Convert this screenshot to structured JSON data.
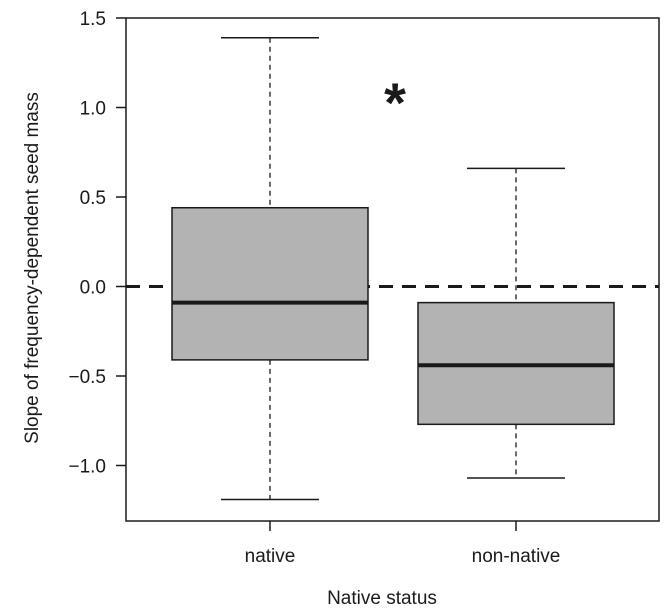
{
  "chart_data": {
    "type": "boxplot",
    "title": "",
    "xlabel": "Native status",
    "ylabel": "Slope of frequency-dependent seed mass",
    "ylim": [
      -1.3,
      1.5
    ],
    "yticks": [
      -1.0,
      -0.5,
      0.0,
      0.5,
      1.0,
      1.5
    ],
    "ytick_labels": [
      "−1.0",
      "−0.5",
      "0.0",
      "0.5",
      "1.0",
      "1.5"
    ],
    "categories": [
      "native",
      "non-native"
    ],
    "boxes": [
      {
        "category": "native",
        "whisker_low": -1.19,
        "q1": -0.41,
        "median": -0.09,
        "q3": 0.44,
        "whisker_high": 1.39
      },
      {
        "category": "non-native",
        "whisker_low": -1.07,
        "q1": -0.77,
        "median": -0.44,
        "q3": -0.09,
        "whisker_high": 0.66
      }
    ],
    "reference_line": {
      "y": 0.0,
      "style": "dashed"
    },
    "annotation": "*",
    "colors": {
      "box_fill": "#b3b3b3",
      "line": "#1a1a1a"
    },
    "grid": false,
    "legend": "none"
  }
}
